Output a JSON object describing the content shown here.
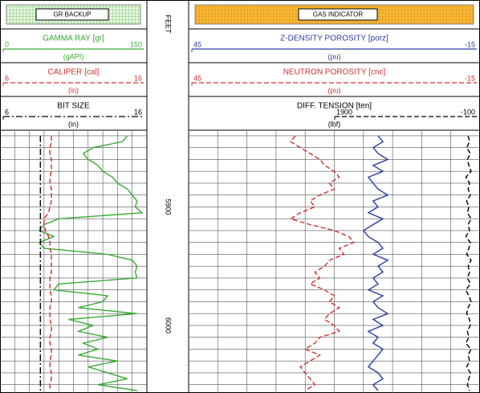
{
  "chart_data": [
    {
      "type": "line",
      "title": "GR BACKUP",
      "ylim": [
        5836,
        6057
      ],
      "grid": true,
      "y": [
        5840,
        5845,
        5850,
        5855,
        5860,
        5865,
        5870,
        5875,
        5880,
        5885,
        5890,
        5895,
        5900,
        5905,
        5910,
        5915,
        5920,
        5925,
        5930,
        5935,
        5940,
        5945,
        5950,
        5955,
        5960,
        5965,
        5970,
        5975,
        5980,
        5985,
        5990,
        5995,
        6000,
        6005,
        6010,
        6015,
        6020,
        6025,
        6030,
        6035,
        6040,
        6045,
        6050,
        6055
      ],
      "series": [
        {
          "name": "GAMMA RAY [gr]",
          "units": "(gAPI)",
          "xlim": [
            0,
            150
          ],
          "color": "#3aaa35",
          "dash": "solid",
          "values": [
            130,
            125,
            95,
            85,
            90,
            100,
            105,
            115,
            120,
            130,
            135,
            140,
            138,
            145,
            60,
            45,
            40,
            55,
            40,
            45,
            110,
            135,
            140,
            138,
            140,
            60,
            55,
            110,
            105,
            80,
            140,
            70,
            95,
            80,
            110,
            85,
            100,
            80,
            120,
            90,
            110,
            130,
            100,
            140
          ]
        },
        {
          "name": "CALIPER [cal]",
          "units": "(in)",
          "xlim": [
            6,
            16
          ],
          "color": "#d0312d",
          "dash": "dashed",
          "values": [
            9.5,
            9.5,
            9.4,
            9.4,
            9.5,
            9.5,
            9.5,
            9.4,
            9.4,
            9.5,
            9.5,
            9.5,
            9.4,
            9.3,
            9.0,
            9.0,
            9.1,
            9.3,
            9.4,
            9.4,
            9.5,
            9.5,
            9.5,
            9.5,
            9.4,
            9.4,
            9.4,
            9.5,
            9.5,
            9.4,
            9.4,
            9.4,
            9.5,
            9.5,
            9.4,
            9.4,
            9.5,
            9.5,
            9.4,
            9.4,
            9.5,
            9.5,
            9.4,
            9.4
          ]
        },
        {
          "name": "BIT SIZE",
          "units": "(in)",
          "xlim": [
            6,
            16
          ],
          "color": "#000000",
          "dash": "dashdot",
          "values": [
            8.75,
            8.75,
            8.75,
            8.75,
            8.75,
            8.75,
            8.75,
            8.75,
            8.75,
            8.75,
            8.75,
            8.75,
            8.75,
            8.75,
            8.75,
            8.75,
            8.75,
            8.75,
            8.75,
            8.75,
            8.75,
            8.75,
            8.75,
            8.75,
            8.75,
            8.75,
            8.75,
            8.75,
            8.75,
            8.75,
            8.75,
            8.75,
            8.75,
            8.75,
            8.75,
            8.75,
            8.75,
            8.75,
            8.75,
            8.75,
            8.75,
            8.75,
            8.75,
            8.75
          ]
        }
      ]
    },
    {
      "type": "depth",
      "ylabel": "FEET",
      "ylim": [
        5836,
        6057
      ],
      "yticks": [
        5900,
        6000
      ]
    },
    {
      "type": "line",
      "title": "GAS INDICATOR",
      "ylim": [
        5836,
        6057
      ],
      "grid": true,
      "y": [
        5840,
        5845,
        5850,
        5855,
        5860,
        5865,
        5870,
        5875,
        5880,
        5885,
        5890,
        5895,
        5900,
        5905,
        5910,
        5915,
        5920,
        5925,
        5930,
        5935,
        5940,
        5945,
        5950,
        5955,
        5960,
        5965,
        5970,
        5975,
        5980,
        5985,
        5990,
        5995,
        6000,
        6005,
        6010,
        6015,
        6020,
        6025,
        6030,
        6035,
        6040,
        6045,
        6050,
        6055
      ],
      "series": [
        {
          "name": "Z-DENSITY POROSITY [porz]",
          "units": "(pu)",
          "xlim": [
            45,
            -15
          ],
          "color": "#2b3ea0",
          "dash": "solid",
          "values": [
            6,
            5,
            7,
            6,
            4,
            7,
            5,
            8,
            7,
            6,
            4,
            7,
            6,
            8,
            5,
            7,
            9,
            8,
            6,
            5,
            7,
            4,
            6,
            5,
            7,
            6,
            8,
            5,
            7,
            6,
            4,
            7,
            5,
            8,
            6,
            7,
            5,
            6,
            7,
            8,
            6,
            5,
            7,
            6
          ]
        },
        {
          "name": "NEUTRON POROSITY [cnc]",
          "units": "(pu)",
          "xlim": [
            45,
            -15
          ],
          "color": "#d0312d",
          "dash": "dashed",
          "values": [
            23,
            24,
            22,
            20,
            18,
            17,
            15,
            14,
            16,
            15,
            18,
            20,
            19,
            22,
            24,
            20,
            15,
            12,
            11,
            14,
            13,
            16,
            17,
            19,
            18,
            20,
            17,
            15,
            16,
            14,
            16,
            17,
            15,
            14,
            18,
            19,
            21,
            18,
            20,
            22,
            21,
            20,
            19,
            21
          ]
        },
        {
          "name": "DIFF. TENSION [ten]",
          "units": "(lbf)",
          "xlim": [
            1900,
            -100
          ],
          "color": "#000000",
          "dash": "dashed",
          "values": [
            60,
            40,
            80,
            30,
            70,
            50,
            20,
            90,
            40,
            60,
            30,
            80,
            50,
            70,
            20,
            60,
            40,
            90,
            30,
            50,
            80,
            20,
            60,
            40,
            70,
            30,
            90,
            50,
            20,
            60,
            80,
            40,
            30,
            70,
            50,
            90,
            20,
            60,
            40,
            80,
            30,
            50,
            70,
            40
          ]
        }
      ]
    }
  ]
}
